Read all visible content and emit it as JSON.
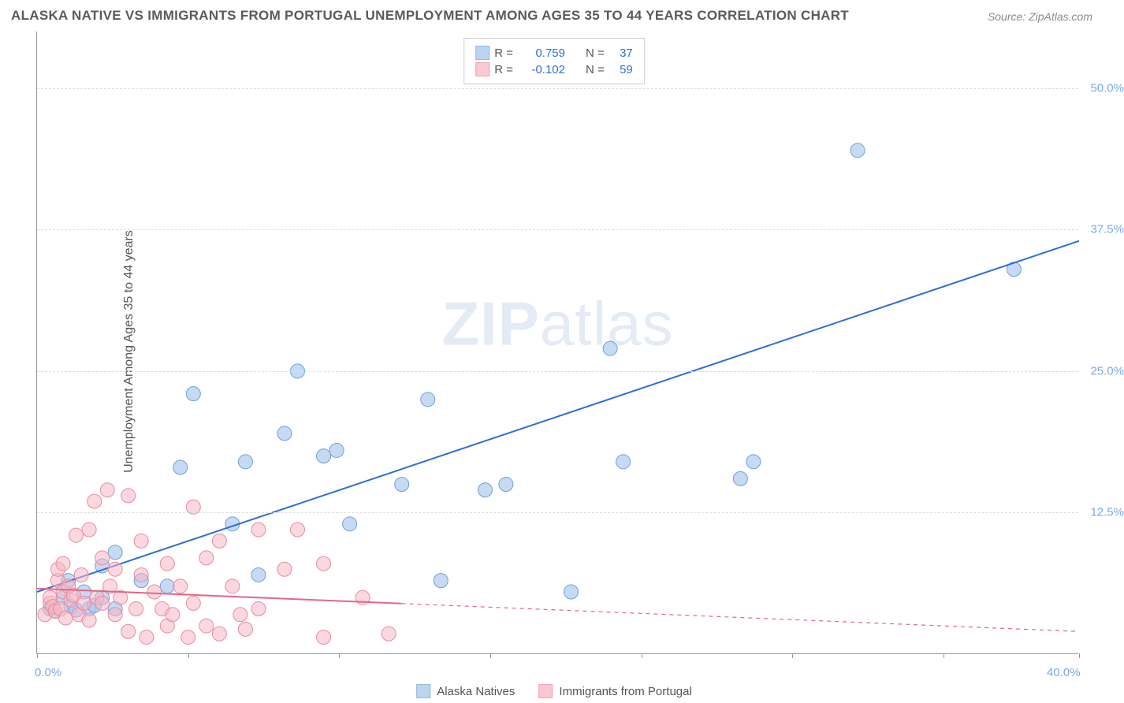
{
  "title": "ALASKA NATIVE VS IMMIGRANTS FROM PORTUGAL UNEMPLOYMENT AMONG AGES 35 TO 44 YEARS CORRELATION CHART",
  "source": "Source: ZipAtlas.com",
  "ylabel": "Unemployment Among Ages 35 to 44 years",
  "watermark_bold": "ZIP",
  "watermark_rest": "atlas",
  "chart": {
    "type": "scatter",
    "background_color": "#ffffff",
    "grid_color": "#dddddd",
    "axis_color": "#999999",
    "tick_label_color": "#7aa9e8",
    "xlim": [
      0,
      40
    ],
    "ylim": [
      0,
      55
    ],
    "xtick_positions": [
      0,
      5.8,
      11.6,
      17.4,
      23.2,
      29.0,
      34.8,
      40
    ],
    "xtick_labels": {
      "0": "0.0%",
      "40": "40.0%"
    },
    "ytick_positions": [
      12.5,
      25.0,
      37.5,
      50.0
    ],
    "ytick_labels": [
      "12.5%",
      "25.0%",
      "37.5%",
      "50.0%"
    ],
    "series": [
      {
        "name": "Alaska Natives",
        "label": "Alaska Natives",
        "marker_color": "#a7c6ec",
        "marker_border": "#6f9fd8",
        "marker_opacity": 0.65,
        "marker_radius": 9,
        "line_color": "#2e6fd1",
        "line_width": 2,
        "line_solid_xmax": 40,
        "R": "0.759",
        "N": "37",
        "reg_start": [
          0,
          5.5
        ],
        "reg_end": [
          40,
          36.5
        ],
        "points": [
          [
            0.5,
            4.0
          ],
          [
            0.7,
            3.8
          ],
          [
            1.0,
            5.0
          ],
          [
            1.2,
            6.5
          ],
          [
            1.3,
            4.2
          ],
          [
            1.5,
            3.9
          ],
          [
            1.8,
            5.5
          ],
          [
            2.0,
            4.0
          ],
          [
            2.2,
            4.3
          ],
          [
            2.5,
            5.0
          ],
          [
            2.5,
            7.8
          ],
          [
            3.0,
            9.0
          ],
          [
            3.0,
            4.0
          ],
          [
            4.0,
            6.5
          ],
          [
            5.0,
            6.0
          ],
          [
            5.5,
            16.5
          ],
          [
            6.0,
            23.0
          ],
          [
            7.5,
            11.5
          ],
          [
            8.0,
            17.0
          ],
          [
            8.5,
            7.0
          ],
          [
            9.5,
            19.5
          ],
          [
            10.0,
            25.0
          ],
          [
            11.0,
            17.5
          ],
          [
            11.5,
            18.0
          ],
          [
            12.0,
            11.5
          ],
          [
            14.0,
            15.0
          ],
          [
            15.0,
            22.5
          ],
          [
            15.5,
            6.5
          ],
          [
            17.2,
            14.5
          ],
          [
            18.0,
            15.0
          ],
          [
            20.5,
            5.5
          ],
          [
            22.0,
            27.0
          ],
          [
            22.5,
            17.0
          ],
          [
            27.0,
            15.5
          ],
          [
            27.5,
            17.0
          ],
          [
            31.5,
            44.5
          ],
          [
            37.5,
            34.0
          ]
        ]
      },
      {
        "name": "Immigrants from Portugal",
        "label": "Immigrants from Portugal",
        "marker_color": "#f7b6c4",
        "marker_border": "#e88aa0",
        "marker_opacity": 0.55,
        "marker_radius": 9,
        "line_color": "#e06789",
        "line_width": 2,
        "line_solid_xmax": 14,
        "R": "-0.102",
        "N": "59",
        "reg_start": [
          0,
          5.8
        ],
        "reg_end": [
          40,
          2.0
        ],
        "points": [
          [
            0.3,
            3.5
          ],
          [
            0.5,
            4.5
          ],
          [
            0.5,
            5.0
          ],
          [
            0.6,
            4.2
          ],
          [
            0.7,
            3.8
          ],
          [
            0.8,
            6.5
          ],
          [
            0.8,
            7.5
          ],
          [
            0.9,
            4.0
          ],
          [
            1.0,
            5.5
          ],
          [
            1.0,
            8.0
          ],
          [
            1.1,
            3.2
          ],
          [
            1.2,
            6.0
          ],
          [
            1.3,
            4.8
          ],
          [
            1.4,
            5.2
          ],
          [
            1.5,
            10.5
          ],
          [
            1.6,
            3.5
          ],
          [
            1.7,
            7.0
          ],
          [
            1.8,
            4.5
          ],
          [
            2.0,
            11.0
          ],
          [
            2.0,
            3.0
          ],
          [
            2.2,
            13.5
          ],
          [
            2.3,
            5.0
          ],
          [
            2.5,
            8.5
          ],
          [
            2.5,
            4.5
          ],
          [
            2.7,
            14.5
          ],
          [
            2.8,
            6.0
          ],
          [
            3.0,
            3.5
          ],
          [
            3.0,
            7.5
          ],
          [
            3.2,
            5.0
          ],
          [
            3.5,
            14.0
          ],
          [
            3.5,
            2.0
          ],
          [
            3.8,
            4.0
          ],
          [
            4.0,
            7.0
          ],
          [
            4.0,
            10.0
          ],
          [
            4.2,
            1.5
          ],
          [
            4.5,
            5.5
          ],
          [
            4.8,
            4.0
          ],
          [
            5.0,
            2.5
          ],
          [
            5.0,
            8.0
          ],
          [
            5.2,
            3.5
          ],
          [
            5.5,
            6.0
          ],
          [
            5.8,
            1.5
          ],
          [
            6.0,
            13.0
          ],
          [
            6.0,
            4.5
          ],
          [
            6.5,
            8.5
          ],
          [
            6.5,
            2.5
          ],
          [
            7.0,
            10.0
          ],
          [
            7.0,
            1.8
          ],
          [
            7.5,
            6.0
          ],
          [
            7.8,
            3.5
          ],
          [
            8.0,
            2.2
          ],
          [
            8.5,
            11.0
          ],
          [
            8.5,
            4.0
          ],
          [
            9.5,
            7.5
          ],
          [
            10.0,
            11.0
          ],
          [
            11.0,
            1.5
          ],
          [
            11.0,
            8.0
          ],
          [
            12.5,
            5.0
          ],
          [
            13.5,
            1.8
          ]
        ]
      }
    ],
    "legend_top": {
      "r_label": "R =",
      "n_label": "N ="
    }
  }
}
